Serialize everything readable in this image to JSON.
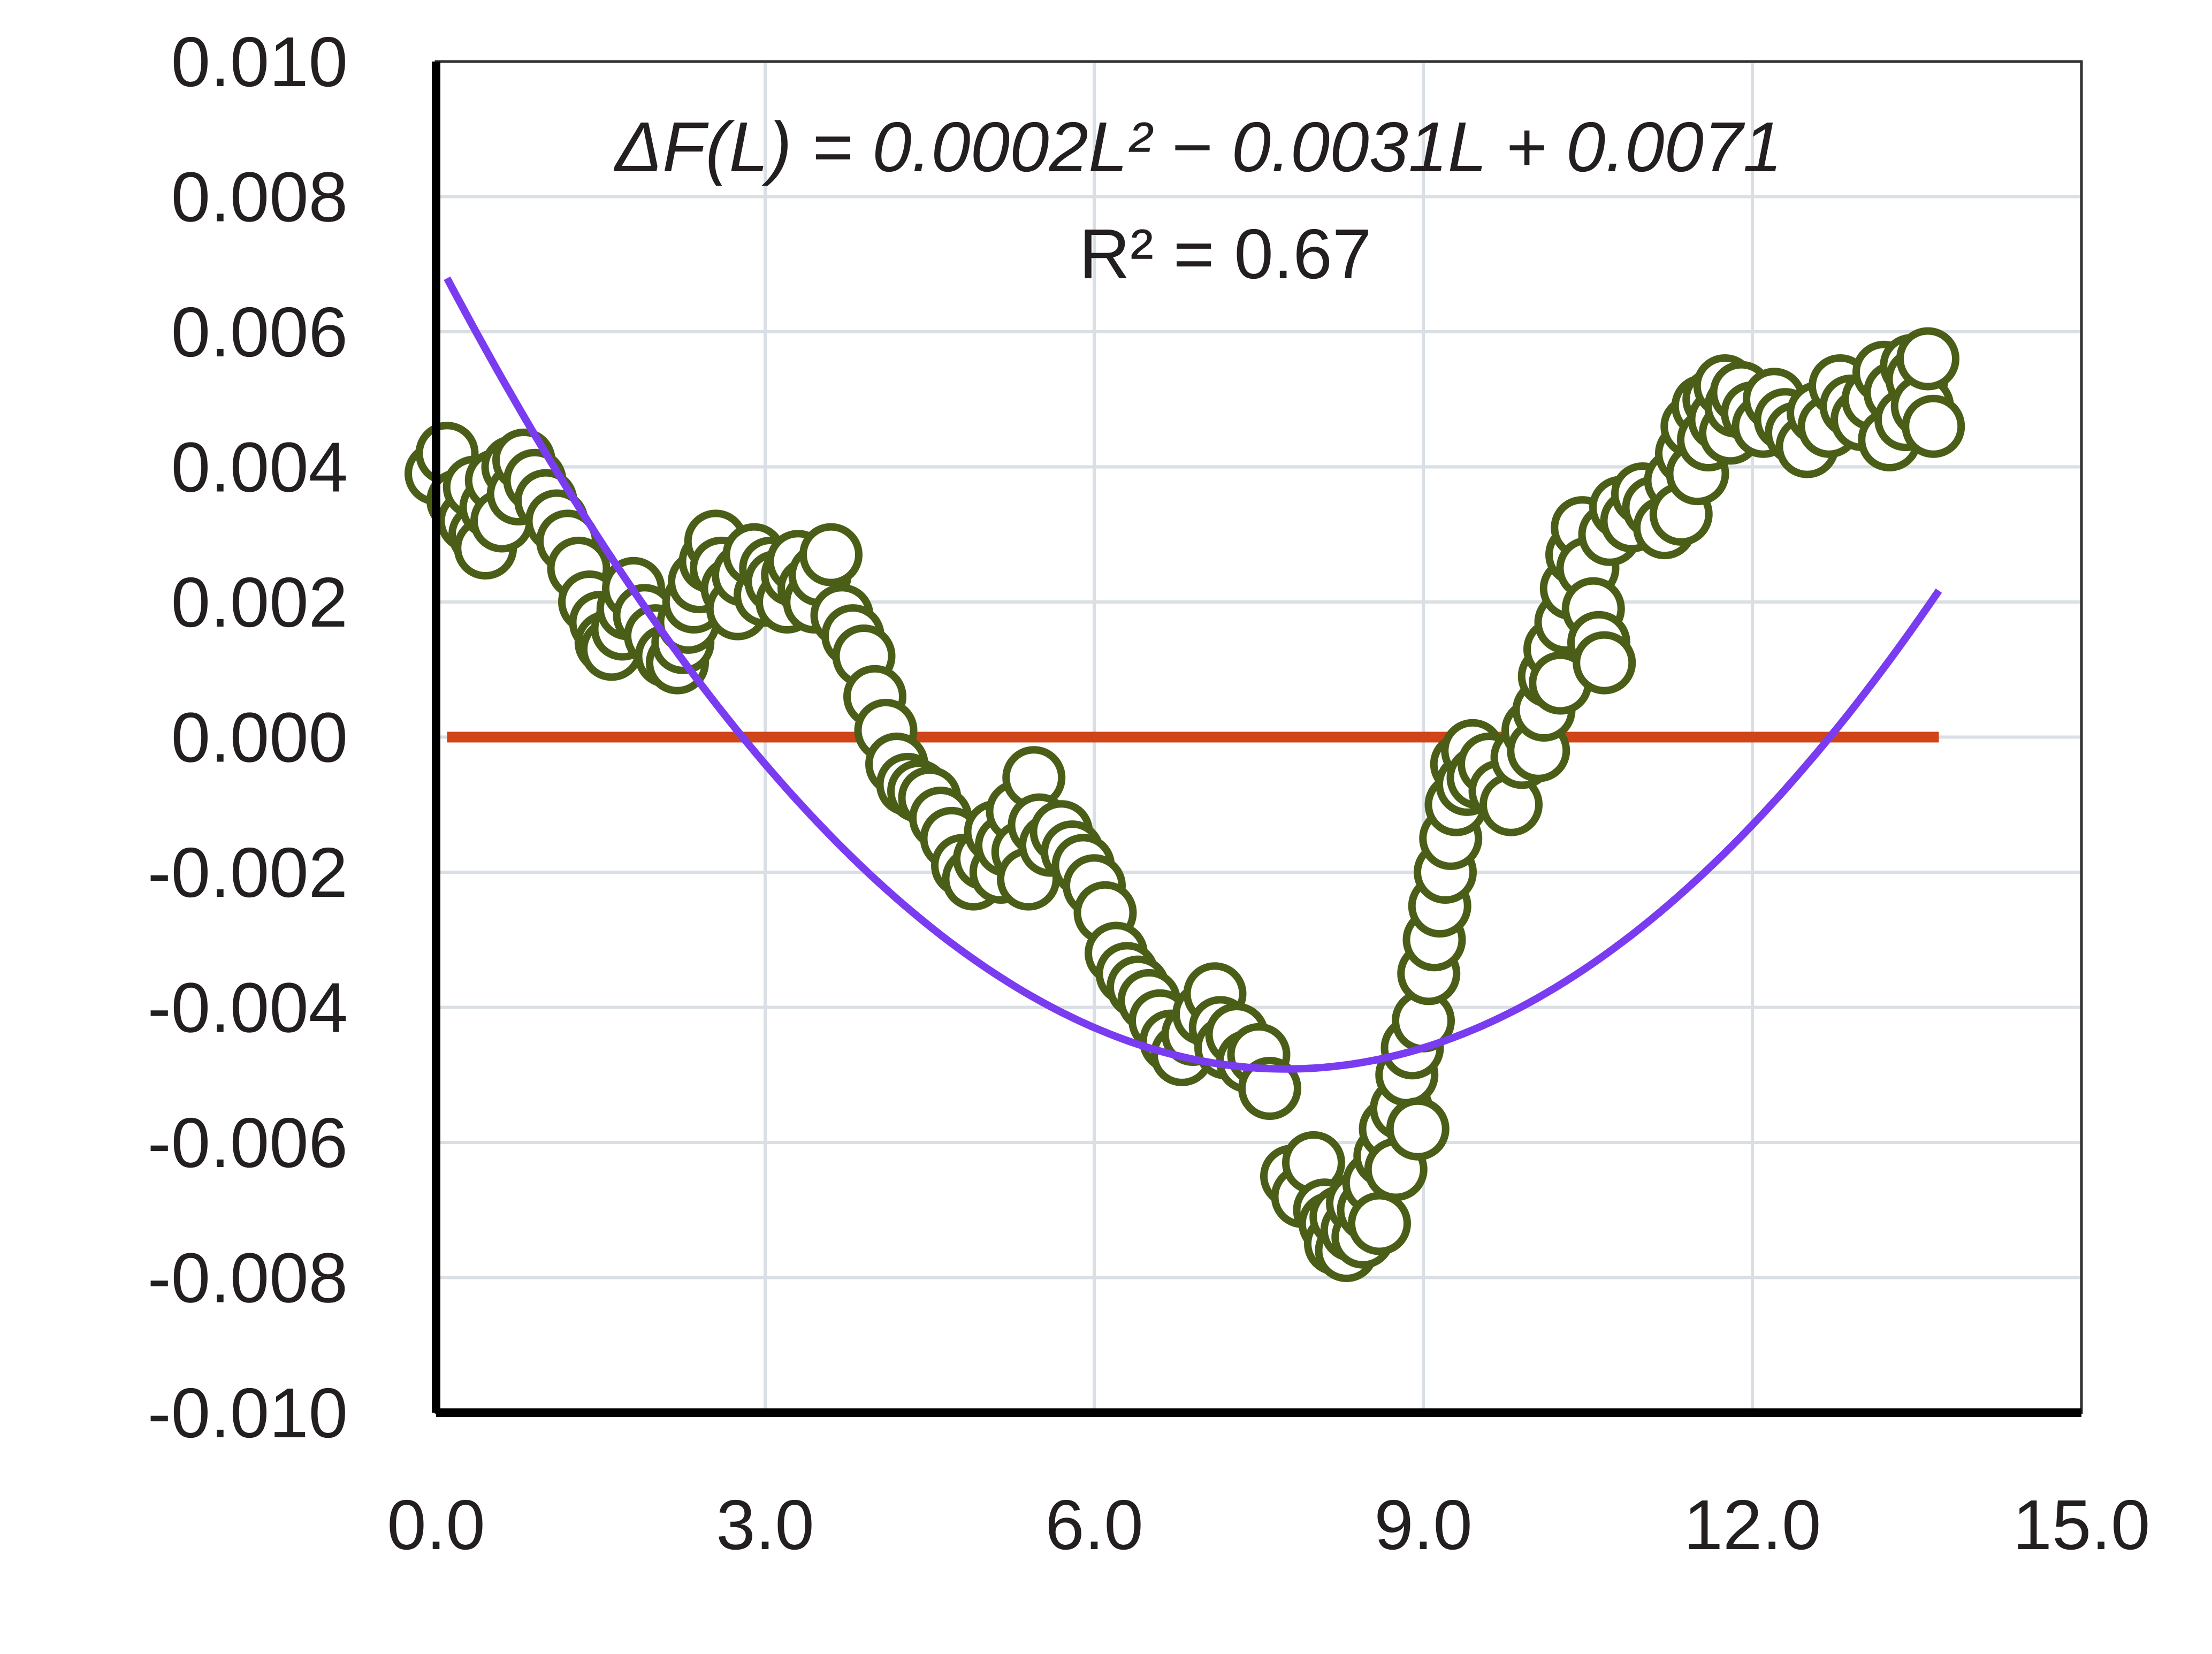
{
  "chart_data": {
    "type": "scatter",
    "title": "",
    "xlabel": "",
    "ylabel": "",
    "xlim": [
      0,
      15
    ],
    "ylim": [
      -0.01,
      0.01
    ],
    "grid": true,
    "x_ticks": [
      0,
      3,
      6,
      9,
      12,
      15
    ],
    "y_ticks": [
      -0.01,
      -0.008,
      -0.006,
      -0.004,
      -0.002,
      0.0,
      0.002,
      0.004,
      0.006,
      0.008,
      0.01
    ],
    "x_tick_labels": [
      "0.0",
      "3.0",
      "6.0",
      "9.0",
      "12.0",
      "15.0"
    ],
    "y_tick_labels": [
      "-0.010",
      "-0.008",
      "-0.006",
      "-0.004",
      "-0.002",
      "0.000",
      "0.002",
      "0.004",
      "0.006",
      "0.008",
      "0.010"
    ],
    "annotations": {
      "equation": "ΔF(L) = 0.0002L² − 0.0031L + 0.0071",
      "r_squared": "R² = 0.67"
    },
    "colors": {
      "markers": "#4a5e17",
      "fit_curve": "#7a3cf0",
      "zero_line": "#d0441a",
      "axes": "#000000",
      "grid": "#d9dfe4"
    },
    "fit": {
      "name": "",
      "type": "polynomial",
      "coefficients": [
        0.0002,
        -0.0031,
        0.0071
      ],
      "x_range": [
        0.1,
        13.7
      ]
    },
    "zero_line": {
      "y": 0.0,
      "x_range": [
        0.1,
        13.7
      ]
    },
    "series": [
      {
        "name": "",
        "marker": "open-circle",
        "points": [
          [
            0.0,
            0.0039
          ],
          [
            0.1,
            0.0042
          ],
          [
            0.2,
            0.0035
          ],
          [
            0.3,
            0.0032
          ],
          [
            0.35,
            0.0037
          ],
          [
            0.4,
            0.003
          ],
          [
            0.45,
            0.0028
          ],
          [
            0.5,
            0.0034
          ],
          [
            0.55,
            0.0038
          ],
          [
            0.6,
            0.0032
          ],
          [
            0.7,
            0.004
          ],
          [
            0.75,
            0.0036
          ],
          [
            0.8,
            0.0041
          ],
          [
            0.9,
            0.0038
          ],
          [
            1.0,
            0.0035
          ],
          [
            1.1,
            0.0032
          ],
          [
            1.2,
            0.0029
          ],
          [
            1.3,
            0.0025
          ],
          [
            1.4,
            0.002
          ],
          [
            1.5,
            0.0017
          ],
          [
            1.55,
            0.0014
          ],
          [
            1.6,
            0.0013
          ],
          [
            1.7,
            0.0016
          ],
          [
            1.75,
            0.0019
          ],
          [
            1.8,
            0.0022
          ],
          [
            1.9,
            0.0018
          ],
          [
            2.0,
            0.0015
          ],
          [
            2.1,
            0.0012
          ],
          [
            2.2,
            0.0011
          ],
          [
            2.25,
            0.0014
          ],
          [
            2.3,
            0.0017
          ],
          [
            2.35,
            0.002
          ],
          [
            2.4,
            0.0023
          ],
          [
            2.5,
            0.0026
          ],
          [
            2.55,
            0.0029
          ],
          [
            2.6,
            0.0025
          ],
          [
            2.7,
            0.0022
          ],
          [
            2.75,
            0.0019
          ],
          [
            2.8,
            0.0024
          ],
          [
            2.9,
            0.0027
          ],
          [
            3.0,
            0.0021
          ],
          [
            3.05,
            0.0025
          ],
          [
            3.1,
            0.0023
          ],
          [
            3.2,
            0.002
          ],
          [
            3.25,
            0.0024
          ],
          [
            3.3,
            0.0026
          ],
          [
            3.4,
            0.0022
          ],
          [
            3.45,
            0.002
          ],
          [
            3.5,
            0.0024
          ],
          [
            3.6,
            0.0027
          ],
          [
            3.7,
            0.0018
          ],
          [
            3.8,
            0.0015
          ],
          [
            3.9,
            0.0012
          ],
          [
            4.0,
            0.0006
          ],
          [
            4.1,
            0.0001
          ],
          [
            4.2,
            -0.0004
          ],
          [
            4.3,
            -0.0007
          ],
          [
            4.4,
            -0.0008
          ],
          [
            4.5,
            -0.0009
          ],
          [
            4.6,
            -0.0012
          ],
          [
            4.7,
            -0.0015
          ],
          [
            4.8,
            -0.0019
          ],
          [
            4.9,
            -0.0021
          ],
          [
            5.0,
            -0.0018
          ],
          [
            5.1,
            -0.0014
          ],
          [
            5.15,
            -0.002
          ],
          [
            5.2,
            -0.0016
          ],
          [
            5.3,
            -0.0011
          ],
          [
            5.35,
            -0.0017
          ],
          [
            5.4,
            -0.0021
          ],
          [
            5.45,
            -0.0006
          ],
          [
            5.5,
            -0.0013
          ],
          [
            5.6,
            -0.0016
          ],
          [
            5.7,
            -0.0014
          ],
          [
            5.8,
            -0.0017
          ],
          [
            5.9,
            -0.0019
          ],
          [
            6.0,
            -0.0022
          ],
          [
            6.1,
            -0.0026
          ],
          [
            6.2,
            -0.0032
          ],
          [
            6.3,
            -0.0035
          ],
          [
            6.4,
            -0.0037
          ],
          [
            6.5,
            -0.0039
          ],
          [
            6.6,
            -0.0042
          ],
          [
            6.7,
            -0.0045
          ],
          [
            6.8,
            -0.0047
          ],
          [
            6.9,
            -0.0044
          ],
          [
            7.0,
            -0.0041
          ],
          [
            7.1,
            -0.0038
          ],
          [
            7.15,
            -0.0043
          ],
          [
            7.2,
            -0.0046
          ],
          [
            7.3,
            -0.0044
          ],
          [
            7.4,
            -0.0048
          ],
          [
            7.5,
            -0.0047
          ],
          [
            7.6,
            -0.0052
          ],
          [
            7.8,
            -0.0065
          ],
          [
            7.9,
            -0.0068
          ],
          [
            8.0,
            -0.0063
          ],
          [
            8.1,
            -0.007
          ],
          [
            8.15,
            -0.0072
          ],
          [
            8.2,
            -0.0075
          ],
          [
            8.25,
            -0.0071
          ],
          [
            8.3,
            -0.0076
          ],
          [
            8.35,
            -0.0073
          ],
          [
            8.4,
            -0.0069
          ],
          [
            8.45,
            -0.0074
          ],
          [
            8.5,
            -0.007
          ],
          [
            8.55,
            -0.0066
          ],
          [
            8.6,
            -0.0072
          ],
          [
            8.65,
            -0.0062
          ],
          [
            8.7,
            -0.0058
          ],
          [
            8.75,
            -0.0064
          ],
          [
            8.8,
            -0.0055
          ],
          [
            8.85,
            -0.005
          ],
          [
            8.9,
            -0.0046
          ],
          [
            8.95,
            -0.0058
          ],
          [
            9.0,
            -0.0042
          ],
          [
            9.05,
            -0.0035
          ],
          [
            9.1,
            -0.003
          ],
          [
            9.15,
            -0.0025
          ],
          [
            9.2,
            -0.002
          ],
          [
            9.25,
            -0.0015
          ],
          [
            9.3,
            -0.001
          ],
          [
            9.35,
            -0.0004
          ],
          [
            9.4,
            -0.0007
          ],
          [
            9.45,
            -0.0002
          ],
          [
            9.5,
            -0.0006
          ],
          [
            9.6,
            -0.0004
          ],
          [
            9.7,
            -0.0008
          ],
          [
            9.8,
            -0.001
          ],
          [
            9.9,
            -0.0003
          ],
          [
            10.0,
            0.0001
          ],
          [
            10.05,
            -0.0002
          ],
          [
            10.1,
            0.0004
          ],
          [
            10.15,
            0.0009
          ],
          [
            10.2,
            0.0013
          ],
          [
            10.25,
            0.0008
          ],
          [
            10.3,
            0.0017
          ],
          [
            10.35,
            0.0022
          ],
          [
            10.4,
            0.0027
          ],
          [
            10.45,
            0.0031
          ],
          [
            10.5,
            0.0025
          ],
          [
            10.55,
            0.0019
          ],
          [
            10.6,
            0.0014
          ],
          [
            10.65,
            0.0011
          ],
          [
            10.7,
            0.003
          ],
          [
            10.8,
            0.0034
          ],
          [
            10.9,
            0.0032
          ],
          [
            11.0,
            0.0036
          ],
          [
            11.1,
            0.0034
          ],
          [
            11.2,
            0.0031
          ],
          [
            11.3,
            0.0038
          ],
          [
            11.35,
            0.0033
          ],
          [
            11.4,
            0.0042
          ],
          [
            11.45,
            0.0046
          ],
          [
            11.5,
            0.0039
          ],
          [
            11.55,
            0.0049
          ],
          [
            11.6,
            0.0044
          ],
          [
            11.65,
            0.005
          ],
          [
            11.7,
            0.0047
          ],
          [
            11.75,
            0.0052
          ],
          [
            11.8,
            0.0045
          ],
          [
            11.85,
            0.0049
          ],
          [
            11.9,
            0.0051
          ],
          [
            12.0,
            0.0048
          ],
          [
            12.1,
            0.0046
          ],
          [
            12.2,
            0.005
          ],
          [
            12.3,
            0.0047
          ],
          [
            12.4,
            0.0045
          ],
          [
            12.5,
            0.0043
          ],
          [
            12.6,
            0.0048
          ],
          [
            12.7,
            0.0046
          ],
          [
            12.8,
            0.0052
          ],
          [
            12.9,
            0.0049
          ],
          [
            13.0,
            0.0047
          ],
          [
            13.1,
            0.005
          ],
          [
            13.2,
            0.0054
          ],
          [
            13.25,
            0.0044
          ],
          [
            13.3,
            0.0051
          ],
          [
            13.4,
            0.0047
          ],
          [
            13.45,
            0.0055
          ],
          [
            13.5,
            0.0053
          ],
          [
            13.55,
            0.0049
          ],
          [
            13.6,
            0.0056
          ],
          [
            13.65,
            0.0046
          ]
        ]
      }
    ]
  }
}
